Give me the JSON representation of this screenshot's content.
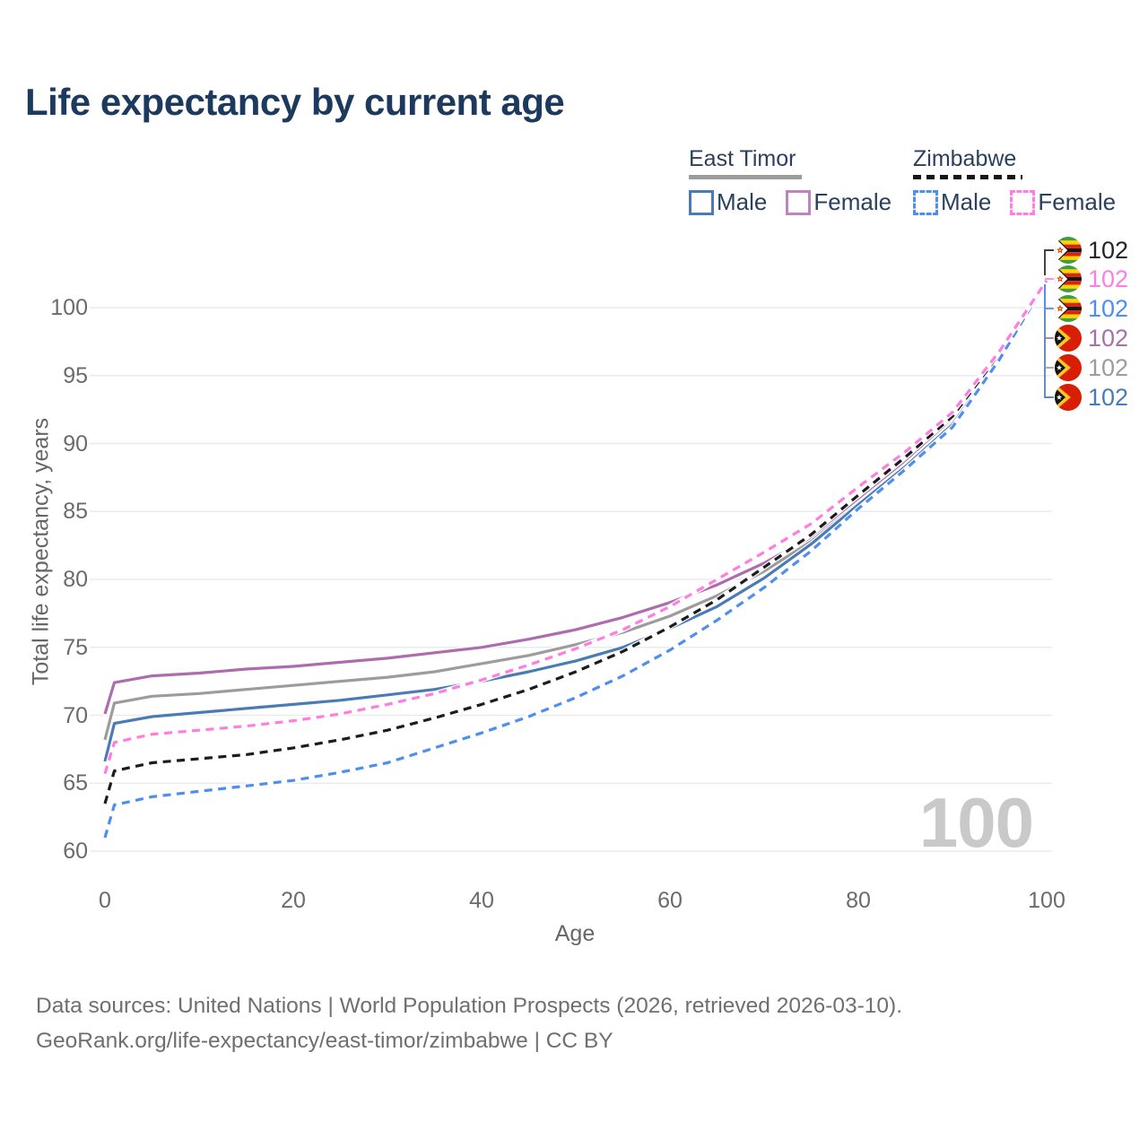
{
  "title": "Life expectancy by current age",
  "legend": {
    "groups": [
      {
        "label": "East Timor",
        "line_style": "solid",
        "line_color": "#9c9c9c",
        "items": [
          {
            "label": "Male",
            "color": "#4b7bb5",
            "style": "solid"
          },
          {
            "label": "Female",
            "color": "#bd85bd",
            "style": "solid"
          }
        ]
      },
      {
        "label": "Zimbabwe",
        "line_style": "dashed",
        "line_color": "#161616",
        "items": [
          {
            "label": "Male",
            "color": "#4d8ef0",
            "style": "dashed"
          },
          {
            "label": "Female",
            "color": "#ff7de1",
            "style": "dashed"
          }
        ]
      }
    ]
  },
  "axes": {
    "x_label": "Age",
    "y_label": "Total life expectancy, years",
    "x_ticks": [
      0,
      20,
      40,
      60,
      80,
      100
    ],
    "y_ticks": [
      60,
      65,
      70,
      75,
      80,
      85,
      90,
      95,
      100
    ]
  },
  "watermark": "100",
  "endpoints": [
    {
      "flag": "zimbabwe",
      "value": "102",
      "color": "#242424"
    },
    {
      "flag": "zimbabwe",
      "value": "102",
      "color": "#ff7de1"
    },
    {
      "flag": "zimbabwe",
      "value": "102",
      "color": "#4d8ef0"
    },
    {
      "flag": "east-timor",
      "value": "102",
      "color": "#a86fa8"
    },
    {
      "flag": "east-timor",
      "value": "102",
      "color": "#9c9c9c"
    },
    {
      "flag": "east-timor",
      "value": "102",
      "color": "#4b7bb5"
    }
  ],
  "footer": {
    "line1": "Data sources: United Nations | World Population Prospects (2026, retrieved 2026-03-10).",
    "line2": "GeoRank.org/life-expectancy/east-timor/zimbabwe | CC BY"
  },
  "chart_data": {
    "type": "line",
    "title": "Life expectancy by current age",
    "xlabel": "Age",
    "ylabel": "Total life expectancy, years",
    "xlim": [
      0,
      100
    ],
    "ylim": [
      60,
      103
    ],
    "grid": "horizontal-only",
    "legend_position": "top-right",
    "x": [
      0,
      1,
      5,
      10,
      15,
      20,
      25,
      30,
      35,
      40,
      45,
      50,
      55,
      60,
      65,
      70,
      75,
      80,
      85,
      90,
      95,
      100
    ],
    "series": [
      {
        "name": "East Timor Female",
        "color": "#ad6cad",
        "dash": "solid",
        "values": [
          70.1,
          72.4,
          72.9,
          73.1,
          73.4,
          73.6,
          73.9,
          74.2,
          74.6,
          75.0,
          75.6,
          76.3,
          77.2,
          78.3,
          79.6,
          81.2,
          83.1,
          85.8,
          88.6,
          91.7,
          96.5,
          102
        ]
      },
      {
        "name": "East Timor Total",
        "color": "#9c9c9c",
        "dash": "solid",
        "values": [
          68.2,
          70.9,
          71.4,
          71.6,
          71.9,
          72.2,
          72.5,
          72.8,
          73.2,
          73.8,
          74.4,
          75.2,
          76.1,
          77.3,
          78.8,
          80.6,
          82.8,
          85.6,
          88.4,
          91.5,
          96.4,
          102
        ]
      },
      {
        "name": "East Timor Male",
        "color": "#4b7bb5",
        "dash": "solid",
        "values": [
          66.6,
          69.4,
          69.9,
          70.2,
          70.5,
          70.8,
          71.1,
          71.5,
          71.9,
          72.5,
          73.2,
          74.0,
          75.0,
          76.4,
          78.0,
          80.1,
          82.6,
          85.5,
          88.3,
          91.4,
          96.3,
          102
        ]
      },
      {
        "name": "Zimbabwe Total",
        "color": "#1c1c1c",
        "dash": "dashed",
        "values": [
          63.5,
          65.9,
          66.5,
          66.8,
          67.1,
          67.6,
          68.2,
          68.9,
          69.8,
          70.8,
          71.9,
          73.2,
          74.7,
          76.5,
          78.5,
          80.9,
          83.3,
          86.2,
          89.0,
          92.0,
          96.6,
          102
        ]
      },
      {
        "name": "Zimbabwe Male",
        "color": "#4d8ef0",
        "dash": "dashed",
        "values": [
          61.0,
          63.4,
          64.0,
          64.4,
          64.8,
          65.2,
          65.8,
          66.5,
          67.6,
          68.7,
          69.9,
          71.3,
          72.9,
          74.8,
          77.0,
          79.4,
          82.1,
          85.2,
          88.1,
          91.2,
          96.2,
          102
        ]
      },
      {
        "name": "Zimbabwe Female",
        "color": "#ff7de1",
        "dash": "dashed",
        "values": [
          65.7,
          68.0,
          68.6,
          68.9,
          69.2,
          69.6,
          70.1,
          70.8,
          71.6,
          72.6,
          73.7,
          74.9,
          76.3,
          78.0,
          80.0,
          82.0,
          84.1,
          86.8,
          89.4,
          92.3,
          96.8,
          102
        ]
      }
    ],
    "endpoint_value": 102
  }
}
